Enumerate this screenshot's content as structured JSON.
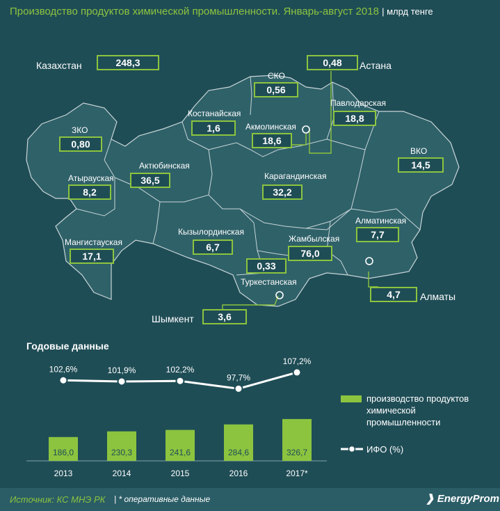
{
  "header": {
    "title": "Производство продуктов химической промышленности. Январь-август 2018",
    "unit": "| млрд тенге"
  },
  "regions": [
    {
      "id": "kazakhstan",
      "name": "Казахстан",
      "value": "248,3"
    },
    {
      "id": "astana",
      "name": "Астана",
      "value": "0,48"
    },
    {
      "id": "sko",
      "name": "СКО",
      "value": "0,56"
    },
    {
      "id": "kostanay",
      "name": "Костанайская",
      "value": "1,6"
    },
    {
      "id": "akmola",
      "name": "Акмолинская",
      "value": "18,6"
    },
    {
      "id": "pavlodar",
      "name": "Павлодарская",
      "value": "18,8"
    },
    {
      "id": "zko",
      "name": "ЗКО",
      "value": "0,80"
    },
    {
      "id": "vko",
      "name": "ВКО",
      "value": "14,5"
    },
    {
      "id": "aktobe",
      "name": "Актюбинская",
      "value": "36,5"
    },
    {
      "id": "atyrau",
      "name": "Атырауская",
      "value": "8,2"
    },
    {
      "id": "karaganda",
      "name": "Карагандинская",
      "value": "32,2"
    },
    {
      "id": "mangystau",
      "name": "Мангистауская",
      "value": "17,1"
    },
    {
      "id": "kyzylorda",
      "name": "Кызылординская",
      "value": "6,7"
    },
    {
      "id": "almaty_obl",
      "name": "Алматинская",
      "value": "7,7"
    },
    {
      "id": "zhambyl",
      "name": "Жамбылская",
      "value": "76,0"
    },
    {
      "id": "turkestan",
      "name": "Туркестанская",
      "value": "0,33"
    },
    {
      "id": "almaty",
      "name": "Алматы",
      "value": "4,7"
    },
    {
      "id": "shymkent",
      "name": "Шымкент",
      "value": "3,6"
    }
  ],
  "annual": {
    "title": "Годовые данные"
  },
  "chart_data": {
    "type": "bar",
    "categories": [
      "2013",
      "2014",
      "2015",
      "2016",
      "2017*"
    ],
    "series": [
      {
        "name": "производство продуктов химической промышленности",
        "kind": "bar",
        "color": "#8cc43f",
        "values": [
          186.0,
          230.3,
          241.6,
          284.6,
          326.7
        ],
        "labels": [
          "186,0",
          "230,3",
          "241,6",
          "284,6",
          "326,7"
        ]
      },
      {
        "name": "ИФО (%)",
        "kind": "line",
        "color": "#ffffff",
        "values": [
          102.6,
          101.9,
          102.2,
          97.7,
          107.2
        ],
        "labels": [
          "102,6%",
          "101,9%",
          "102,2%",
          "97,7%",
          "107,2%"
        ]
      }
    ],
    "title": "Годовые данные",
    "xlabel": "",
    "ylabel": "",
    "grid": false,
    "legend": "right"
  },
  "legend": {
    "bar_label": [
      "производство продуктов",
      "химической",
      "промышленности"
    ],
    "line_label": "ИФО (%)"
  },
  "footer": {
    "source": "Источник: КС МНЭ РК",
    "note": "| * оперативные данные",
    "brand": "EnergyProm"
  }
}
